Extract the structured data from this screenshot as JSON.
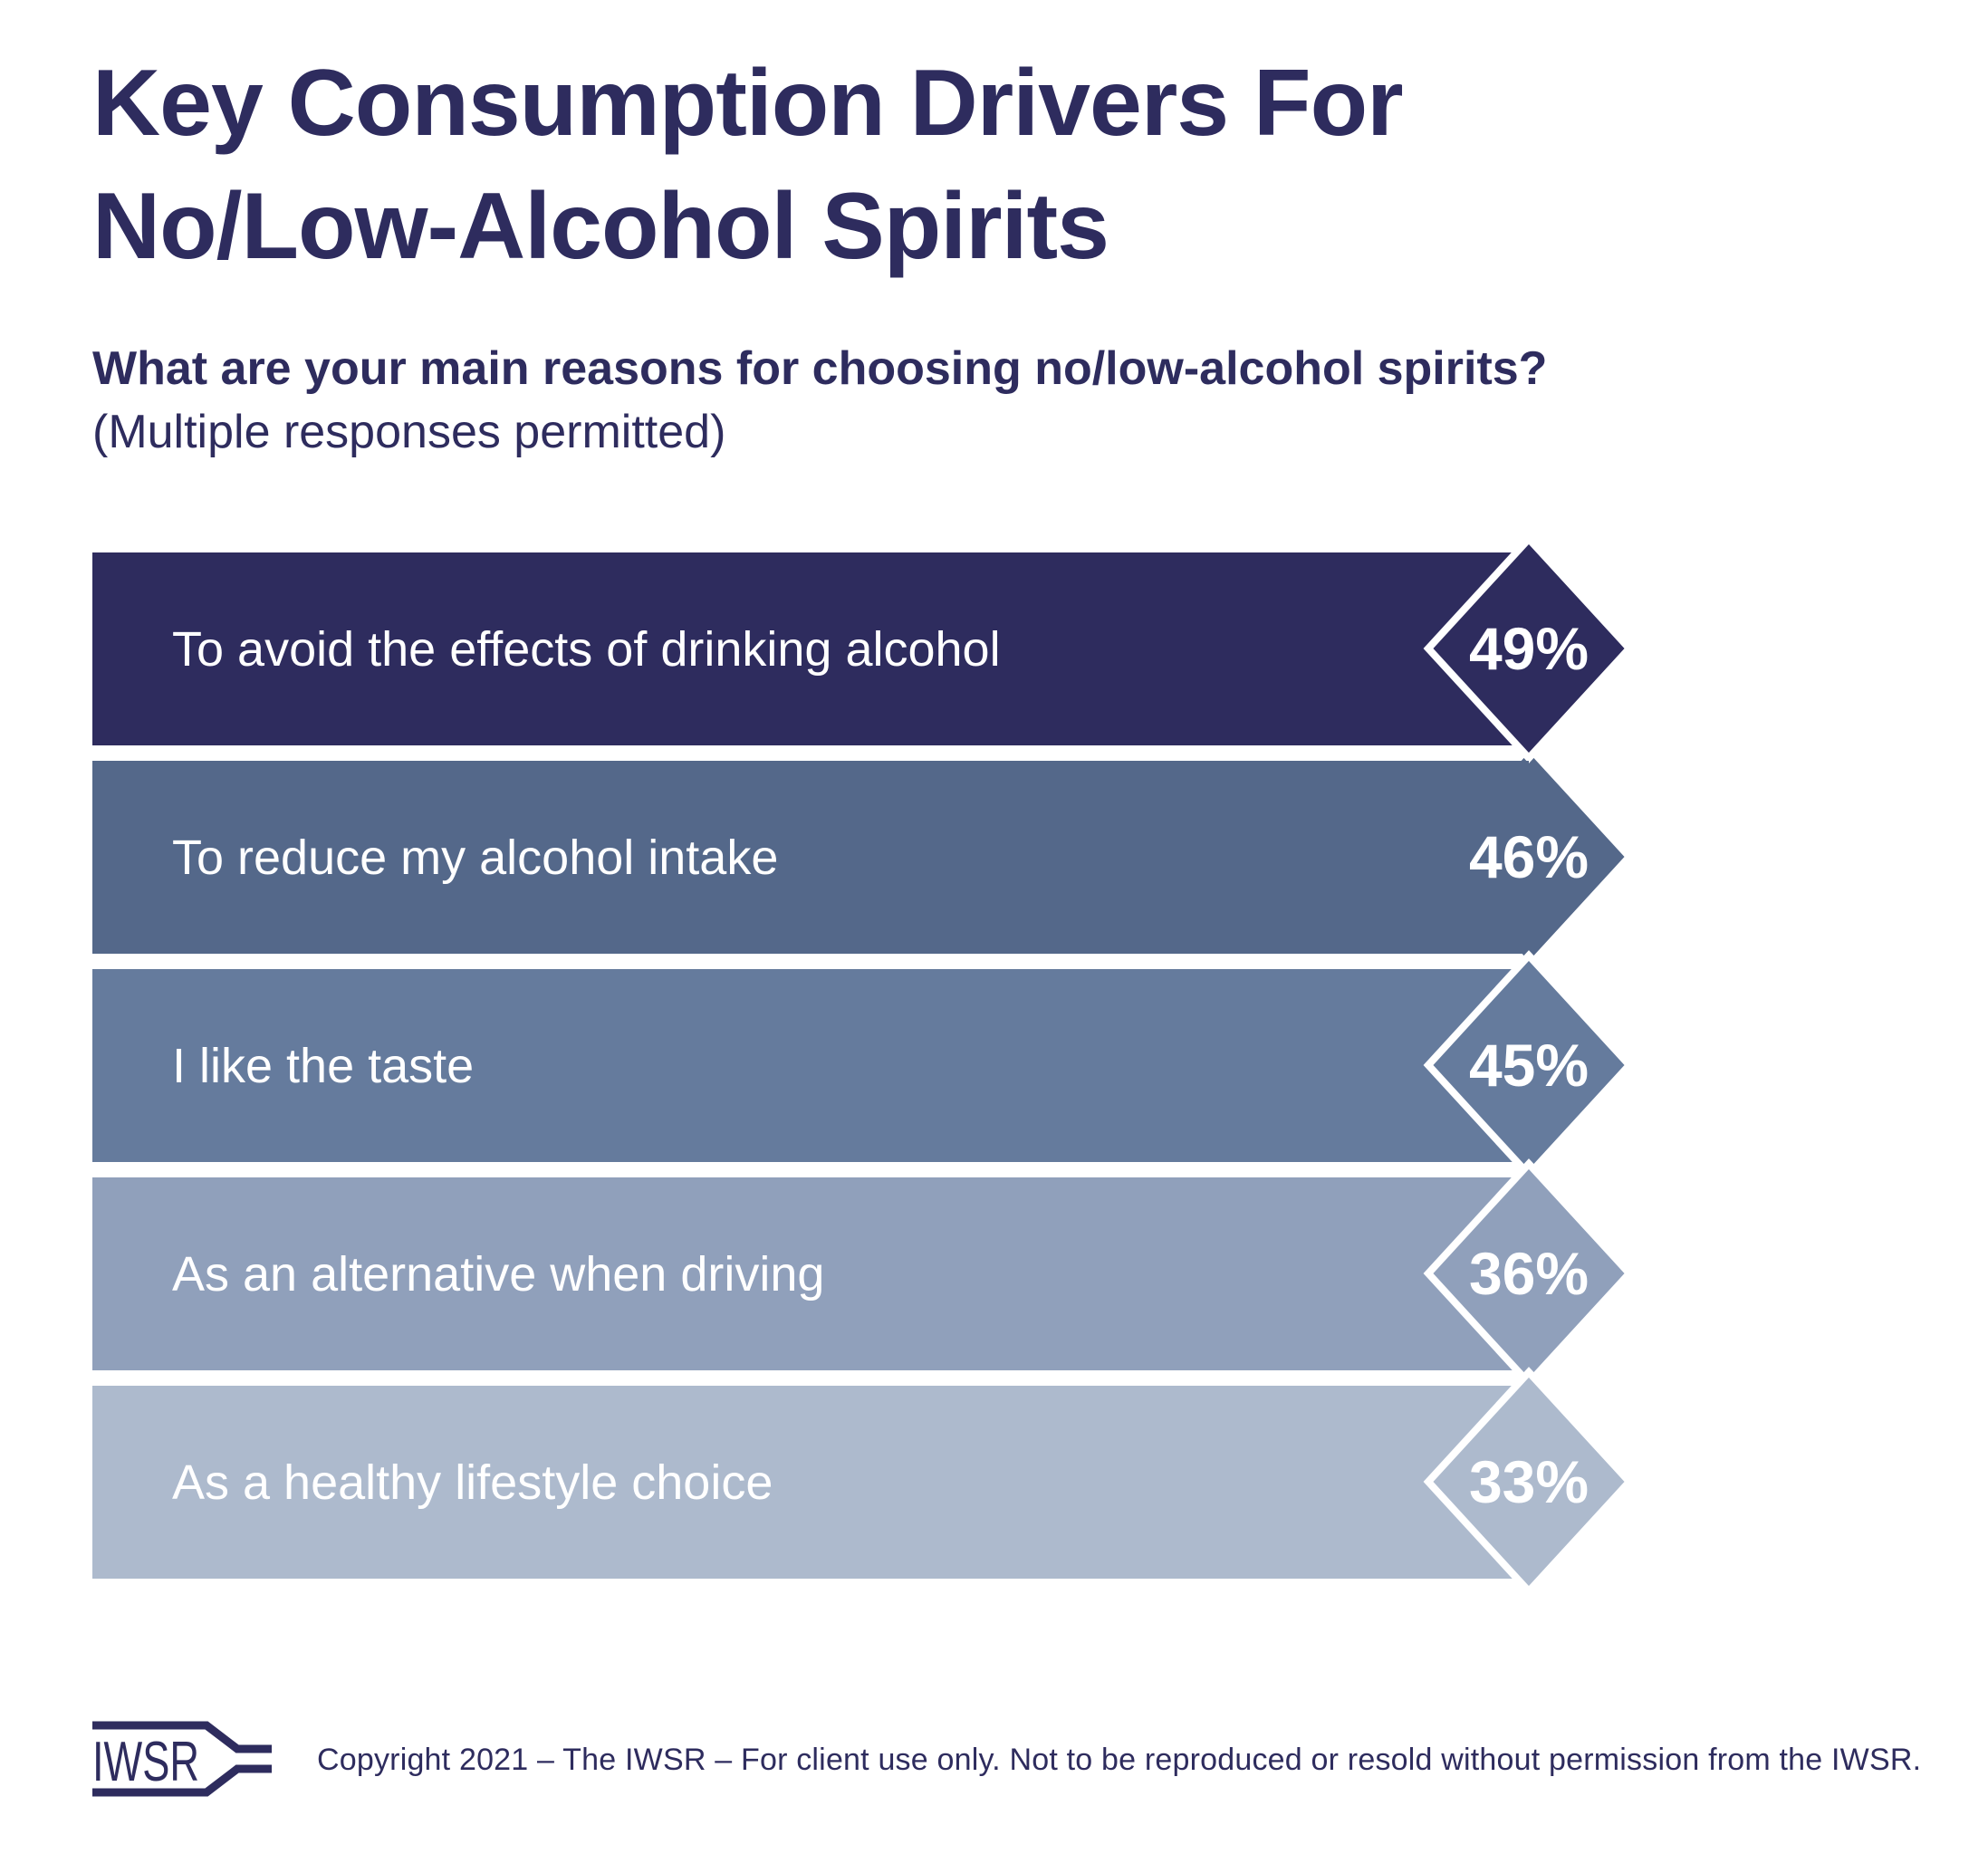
{
  "title": {
    "line1": "Key Consumption Drivers For",
    "line2": "No/Low-Alcohol Spirits"
  },
  "subtitle": {
    "bold": "What are your main reasons for choosing no/low-alcohol spirits?",
    "note": "(Multiple responses permitted)"
  },
  "chart_data": {
    "type": "bar",
    "orientation": "horizontal",
    "title": "Key Consumption Drivers For No/Low-Alcohol Spirits",
    "question": "What are your main reasons for choosing no/low-alcohol spirits? (Multiple responses permitted)",
    "unit": "%",
    "categories": [
      "To avoid the effects of drinking alcohol",
      "To reduce my alcohol intake",
      "I like the taste",
      "As an alternative when driving",
      "As a healthy lifestyle choice"
    ],
    "values": [
      49,
      46,
      45,
      36,
      33
    ],
    "value_labels": [
      "49%",
      "46%",
      "45%",
      "36%",
      "33%"
    ],
    "bar_colors": [
      "#2e2c5e",
      "#54688a",
      "#657b9d",
      "#90a0bb",
      "#adbacd"
    ],
    "label_text_color": "#ffffff",
    "value_badge_shape": "diamond",
    "equal_length_bars": true,
    "grid": false,
    "legend": false
  },
  "footer": {
    "logo_text": "IWSR",
    "copyright": "Copyright 2021 – The IWSR – For client use only. Not to be reproduced or resold without permission from the IWSR."
  },
  "colors": {
    "text_navy": "#2e2c5e",
    "background": "#ffffff",
    "bar_label_white": "#ffffff"
  }
}
